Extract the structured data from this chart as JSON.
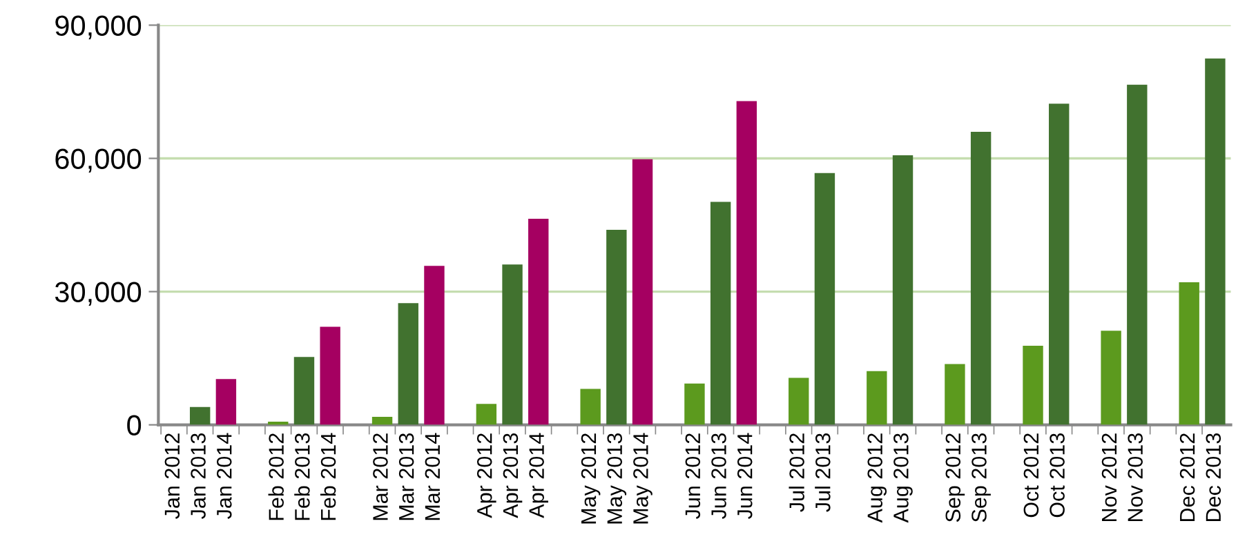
{
  "chart_data": {
    "type": "bar",
    "categories": [
      "Jan 2012",
      "Jan 2013",
      "Jan 2014",
      null,
      "Feb 2012",
      "Feb 2013",
      "Feb 2014",
      null,
      "Mar 2012",
      "Mar 2013",
      "Mar 2014",
      null,
      "Apr 2012",
      "Apr 2013",
      "Apr 2014",
      null,
      "May 2012",
      "May 2013",
      "May 2014",
      null,
      "Jun 2012",
      "Jun 2013",
      "Jun 2014",
      null,
      "Jul 2012",
      "Jul 2013",
      null,
      "Aug 2012",
      "Aug 2013",
      null,
      "Sep 2012",
      "Sep 2013",
      null,
      "Oct 2012",
      "Oct 2013",
      null,
      "Nov 2012",
      "Nov 2013",
      null,
      "Dec 2012",
      "Dec 2013"
    ],
    "values": [
      0,
      4000,
      10300,
      null,
      700,
      15300,
      22100,
      null,
      1800,
      27400,
      35800,
      null,
      4700,
      36100,
      46400,
      null,
      8100,
      43900,
      59800,
      null,
      9300,
      50200,
      72900,
      null,
      10600,
      56700,
      null,
      12100,
      60700,
      null,
      13700,
      66000,
      null,
      17800,
      72300,
      null,
      21200,
      76600,
      null,
      32100,
      82500
    ],
    "colors": [
      "#5c9a1e",
      "#41722f",
      "#a50061",
      null,
      "#5c9a1e",
      "#41722f",
      "#a50061",
      null,
      "#5c9a1e",
      "#41722f",
      "#a50061",
      null,
      "#5c9a1e",
      "#41722f",
      "#a50061",
      null,
      "#5c9a1e",
      "#41722f",
      "#a50061",
      null,
      "#5c9a1e",
      "#41722f",
      "#a50061",
      null,
      "#5c9a1e",
      "#41722f",
      null,
      "#5c9a1e",
      "#41722f",
      null,
      "#5c9a1e",
      "#41722f",
      null,
      "#5c9a1e",
      "#41722f",
      null,
      "#5c9a1e",
      "#41722f",
      null,
      "#5c9a1e",
      "#41722f"
    ],
    "ylim": [
      0,
      90000
    ],
    "yticks": [
      {
        "value": 0,
        "label": "0"
      },
      {
        "value": 30000,
        "label": "30,000"
      },
      {
        "value": 60000,
        "label": "60,000"
      },
      {
        "value": 90000,
        "label": "90,000"
      }
    ],
    "grid": "y"
  }
}
